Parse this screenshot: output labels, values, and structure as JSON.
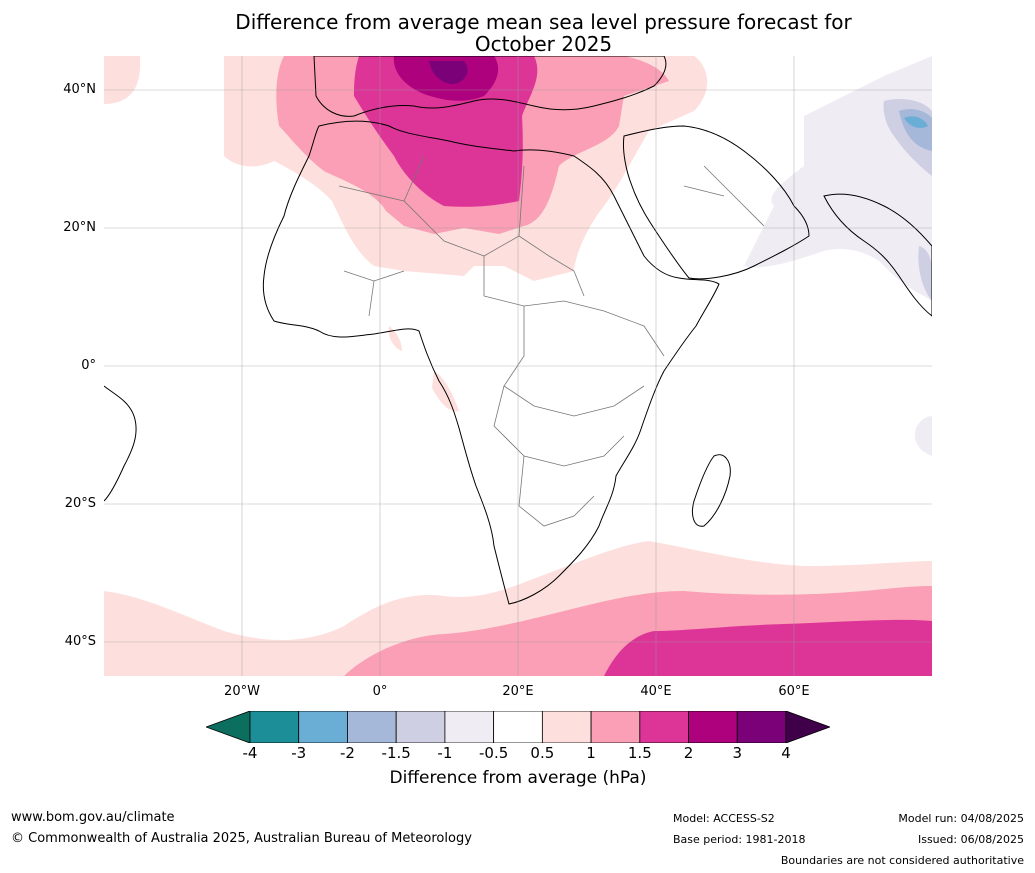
{
  "title": {
    "line1": "Difference from average mean sea level pressure forecast for",
    "line2": "October 2025"
  },
  "map": {
    "region": "Africa",
    "lat_labels": [
      "40°N",
      "20°N",
      "0°",
      "20°S",
      "40°S"
    ],
    "lon_labels": [
      "20°W",
      "0°",
      "20°E",
      "40°E",
      "60°E"
    ],
    "gridlines": true,
    "anomaly_regions": [
      {
        "area": "Mediterranean and North Africa",
        "category": "2 to 3",
        "color": "#b0077f"
      },
      {
        "area": "Sahara",
        "category": "1.5 to 2",
        "color": "#dd3497"
      },
      {
        "area": "Southern Ocean",
        "category": "1.5 to 2",
        "color": "#dd3497"
      },
      {
        "area": "Arabia and Indian Ocean",
        "category": "-1 to -0.5",
        "color": "#f0ecf4"
      }
    ]
  },
  "colorbar": {
    "label": "Difference from average (hPa)",
    "ticks": [
      "-4",
      "-3",
      "-2",
      "-1.5",
      "-1",
      "-0.5",
      "0.5",
      "1",
      "1.5",
      "2",
      "3",
      "4"
    ],
    "extend_low_color": "#0b6e5e",
    "extend_high_color": "#3f0049",
    "colors": [
      "#1b8e97",
      "#6aaed6",
      "#a5b8da",
      "#cfcfe3",
      "#f0ecf4",
      "#ffffff",
      "#fde0dd",
      "#fa9fb5",
      "#dd3497",
      "#ae017e",
      "#7a0177"
    ]
  },
  "footer": {
    "website": "www.bom.gov.au/climate",
    "copyright": "© Commonwealth of Australia 2025, Australian Bureau of Meteorology",
    "model": "Model: ACCESS-S2",
    "base_period": "Base period: 1981-2018",
    "model_run": "Model run: 04/08/2025",
    "issued": "Issued: 06/08/2025",
    "boundaries_note": "Boundaries are not considered authoritative"
  }
}
